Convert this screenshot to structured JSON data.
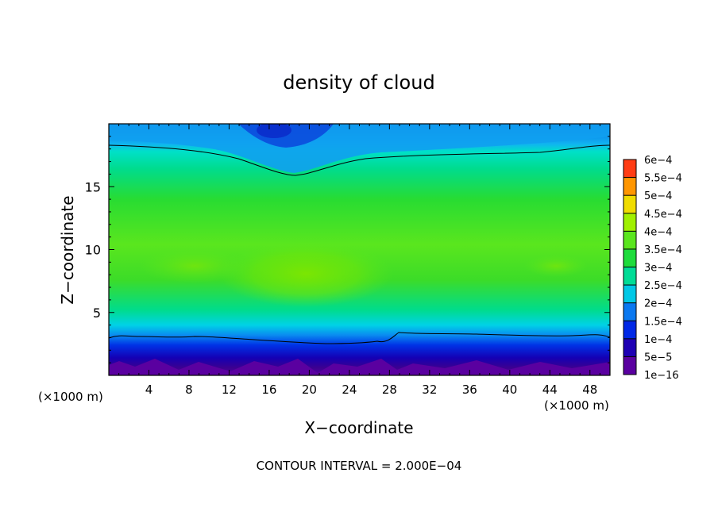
{
  "chart_data": {
    "type": "heatmap",
    "title": "density of cloud",
    "xlabel": "X−coordinate",
    "ylabel": "Z−coordinate",
    "x_unit": "(×1000 m)",
    "y_unit": "(×1000 m)",
    "xlim": [
      0,
      50
    ],
    "ylim": [
      0,
      20
    ],
    "xticks": [
      "4",
      "8",
      "12",
      "16",
      "20",
      "24",
      "28",
      "32",
      "36",
      "40",
      "44",
      "48"
    ],
    "yticks": [
      "5",
      "10",
      "15"
    ],
    "footer": "CONTOUR INTERVAL = 2.000E−04",
    "colorbar": {
      "labels": [
        "1e−16",
        "5e−5",
        "1e−4",
        "1.5e−4",
        "2e−4",
        "2.5e−4",
        "3e−4",
        "3.5e−4",
        "4e−4",
        "4.5e−4",
        "5e−4",
        "5.5e−4",
        "6e−4"
      ],
      "colors": [
        "#5a00a0",
        "#1e00b4",
        "#0028e6",
        "#0a78f0",
        "#00c8e6",
        "#00dc96",
        "#1edc3c",
        "#5ae61e",
        "#a0f000",
        "#f0dc00",
        "#ff9600",
        "#ff3c14",
        "#ff8c8c"
      ]
    }
  }
}
